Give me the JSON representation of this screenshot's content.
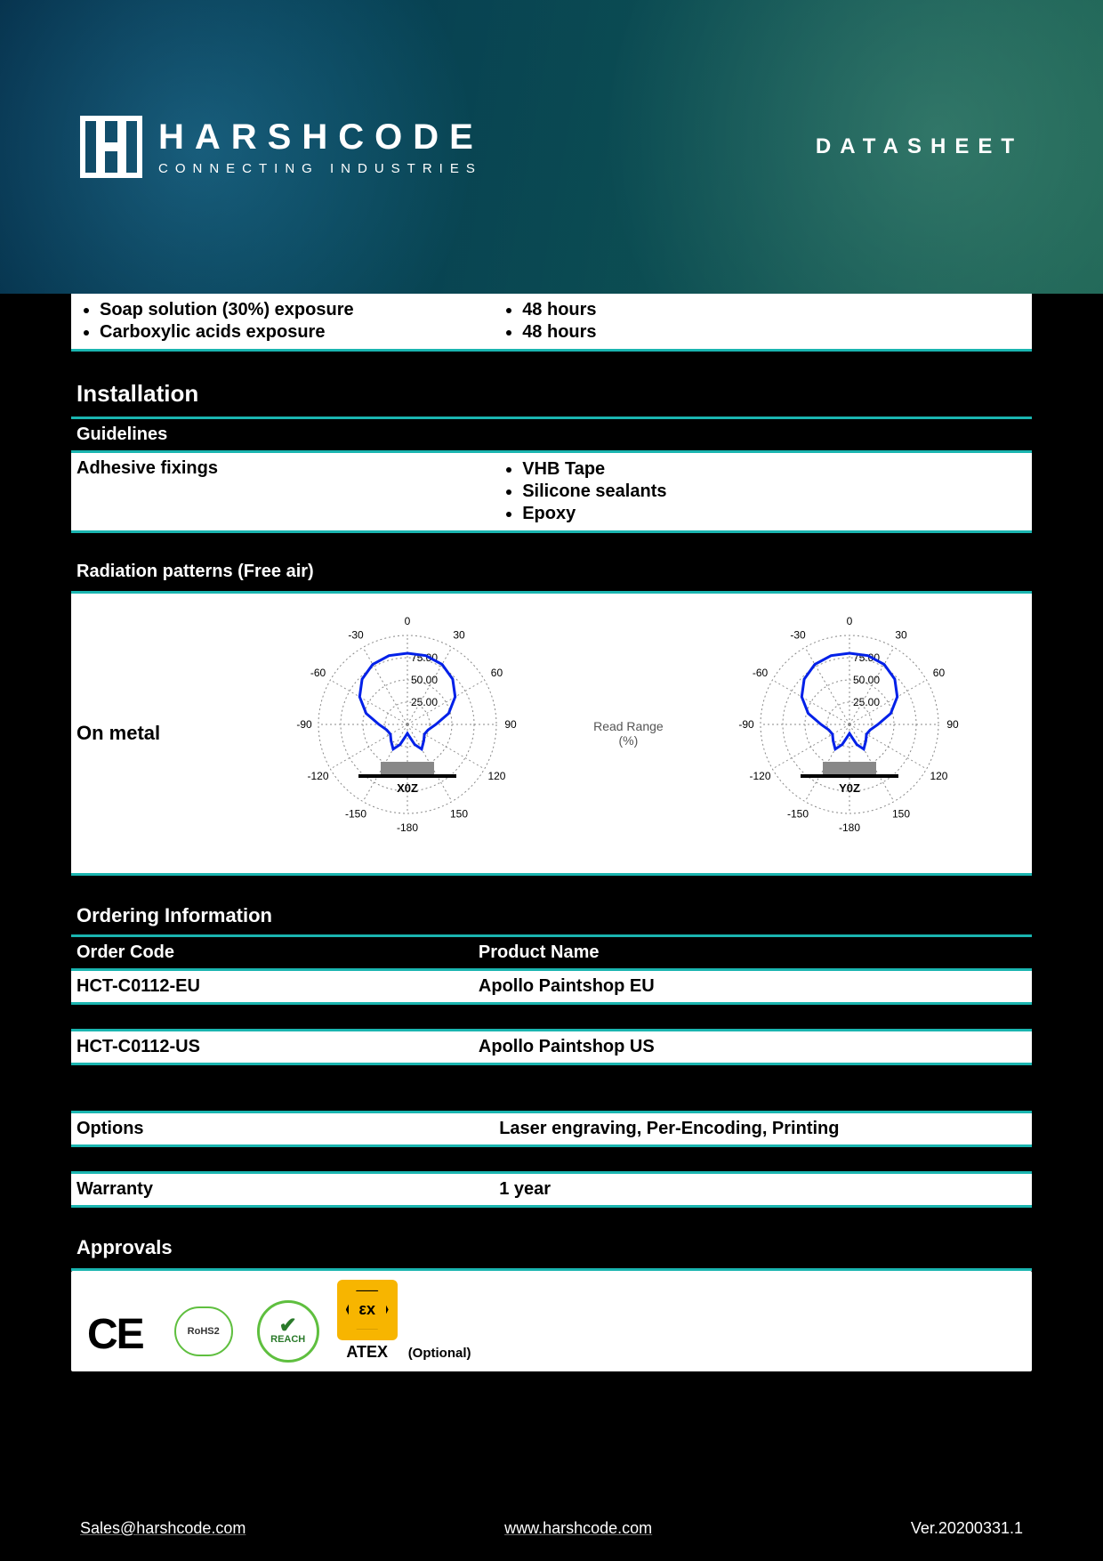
{
  "header": {
    "brand": "HARSHCODE",
    "tagline": "CONNECTING INDUSTRIES",
    "datasheet": "DATASHEET"
  },
  "chemical": {
    "left": [
      "Soap solution (30%) exposure",
      "Carboxylic acids exposure"
    ],
    "right": [
      "48 hours",
      "48 hours"
    ]
  },
  "installation": {
    "title": "Installation",
    "guidelines": "Guidelines",
    "row_label": "Adhesive fixings",
    "items": [
      "VHB Tape",
      "Silicone sealants",
      "Epoxy"
    ]
  },
  "radiation": {
    "title": "Radiation patterns (Free air)",
    "row_label": "On metal",
    "mid_label": "Read Range (%)",
    "charts": [
      {
        "plane": "X0Z",
        "rings": [
          25,
          50,
          75
        ],
        "ring_labels": [
          "25.00",
          "50.00",
          "75.00"
        ],
        "angle_ticks": [
          -180,
          -150,
          -120,
          -90,
          -60,
          -30,
          0,
          30,
          60,
          90,
          120,
          150
        ],
        "curve_color": "#0020e8",
        "curve_points_deg_pct": [
          [
            0,
            80
          ],
          [
            15,
            80
          ],
          [
            30,
            78
          ],
          [
            45,
            72
          ],
          [
            60,
            62
          ],
          [
            75,
            48
          ],
          [
            90,
            32
          ],
          [
            105,
            24
          ],
          [
            120,
            22
          ],
          [
            135,
            26
          ],
          [
            150,
            32
          ],
          [
            160,
            24
          ],
          [
            170,
            14
          ],
          [
            180,
            10
          ],
          [
            -170,
            14
          ],
          [
            -160,
            24
          ],
          [
            -150,
            32
          ],
          [
            -135,
            26
          ],
          [
            -120,
            22
          ],
          [
            -105,
            24
          ],
          [
            -90,
            32
          ],
          [
            -75,
            48
          ],
          [
            -60,
            62
          ],
          [
            -45,
            72
          ],
          [
            -30,
            78
          ],
          [
            -15,
            80
          ]
        ]
      },
      {
        "plane": "Y0Z",
        "rings": [
          25,
          50,
          75
        ],
        "ring_labels": [
          "25.00",
          "50.00",
          "75.00"
        ],
        "angle_ticks": [
          -180,
          -150,
          -120,
          -90,
          -60,
          -30,
          0,
          30,
          60,
          90,
          120,
          150
        ],
        "curve_color": "#0020e8",
        "curve_points_deg_pct": [
          [
            0,
            80
          ],
          [
            15,
            80
          ],
          [
            30,
            78
          ],
          [
            45,
            72
          ],
          [
            60,
            62
          ],
          [
            75,
            48
          ],
          [
            90,
            32
          ],
          [
            105,
            24
          ],
          [
            120,
            22
          ],
          [
            135,
            26
          ],
          [
            150,
            32
          ],
          [
            160,
            24
          ],
          [
            170,
            14
          ],
          [
            180,
            10
          ],
          [
            -170,
            14
          ],
          [
            -160,
            24
          ],
          [
            -150,
            32
          ],
          [
            -135,
            26
          ],
          [
            -120,
            22
          ],
          [
            -105,
            24
          ],
          [
            -90,
            32
          ],
          [
            -75,
            48
          ],
          [
            -60,
            62
          ],
          [
            -45,
            72
          ],
          [
            -30,
            78
          ],
          [
            -15,
            80
          ]
        ]
      }
    ]
  },
  "ordering": {
    "title": "Ordering Information",
    "cols": [
      "Order Code",
      "Product Name"
    ],
    "rows": [
      [
        "HCT-C0112-EU",
        "Apollo Paintshop EU"
      ],
      [
        "HCT-C0112-US",
        "Apollo Paintshop US"
      ]
    ]
  },
  "extra": {
    "rows": [
      [
        "Options",
        "Laser engraving, Per-Encoding, Printing"
      ],
      [
        "Warranty",
        "1 year"
      ]
    ]
  },
  "approvals": {
    "title": "Approvals",
    "ce": "CE",
    "rohs": "RoHS2",
    "reach": "REACH",
    "atex": "εx",
    "atex_label": "ATEX",
    "atex_optional": "(Optional)"
  },
  "footer": {
    "email": "Sales@harshcode.com",
    "url": "www.harshcode.com",
    "version": "Ver.20200331.1"
  }
}
